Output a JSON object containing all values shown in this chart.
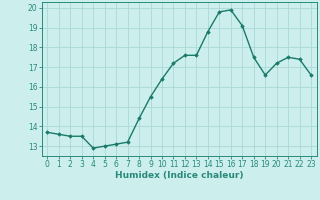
{
  "x": [
    0,
    1,
    2,
    3,
    4,
    5,
    6,
    7,
    8,
    9,
    10,
    11,
    12,
    13,
    14,
    15,
    16,
    17,
    18,
    19,
    20,
    21,
    22,
    23
  ],
  "y": [
    13.7,
    13.6,
    13.5,
    13.5,
    12.9,
    13.0,
    13.1,
    13.2,
    14.4,
    15.5,
    16.4,
    17.2,
    17.6,
    17.6,
    18.8,
    19.8,
    19.9,
    19.1,
    17.5,
    16.6,
    17.2,
    17.5,
    17.4,
    16.6
  ],
  "line_color": "#1a7a6a",
  "marker": "D",
  "marker_size": 1.8,
  "line_width": 1.0,
  "xlabel": "Humidex (Indice chaleur)",
  "xlim": [
    -0.5,
    23.5
  ],
  "ylim": [
    12.5,
    20.3
  ],
  "yticks": [
    13,
    14,
    15,
    16,
    17,
    18,
    19,
    20
  ],
  "xticks": [
    0,
    1,
    2,
    3,
    4,
    5,
    6,
    7,
    8,
    9,
    10,
    11,
    12,
    13,
    14,
    15,
    16,
    17,
    18,
    19,
    20,
    21,
    22,
    23
  ],
  "bg_color": "#cceeed",
  "grid_color": "#aad8d5",
  "line_axis_color": "#2a8a7a",
  "xlabel_fontsize": 6.5,
  "tick_fontsize": 5.5
}
